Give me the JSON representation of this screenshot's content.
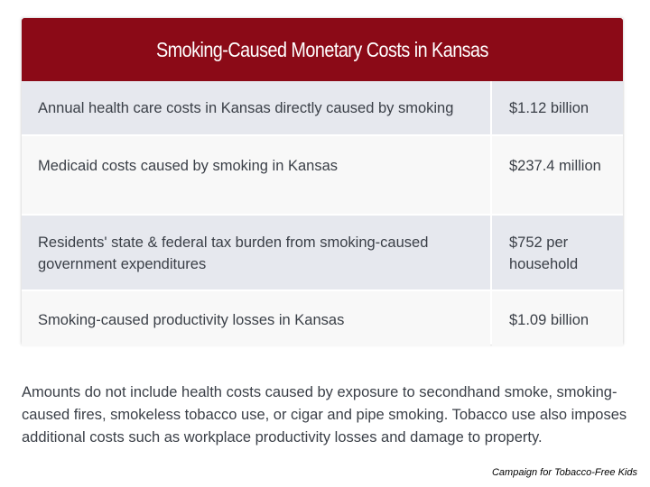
{
  "title": "Smoking-Caused Monetary Costs in Kansas",
  "rows": [
    {
      "description": "Annual health care costs in Kansas directly caused by smoking",
      "value": "$1.12 billion"
    },
    {
      "description": "Medicaid costs caused by smoking in Kansas",
      "value": "$237.4 million"
    },
    {
      "description": "Residents' state & federal tax burden from smoking-caused government expenditures",
      "value": "$752 per household"
    },
    {
      "description": "Smoking-caused productivity losses in Kansas",
      "value": "$1.09 billion"
    }
  ],
  "note": "Amounts do not include health costs caused by exposure to secondhand smoke, smoking-caused fires, smokeless tobacco use, or cigar and pipe smoking. Tobacco use also imposes additional costs such as workplace productivity losses and damage to property.",
  "credit": "Campaign for Tobacco-Free Kids",
  "colors": {
    "header_bg": "#8b0a17",
    "row_shaded": "#e6e8ee",
    "row_plain": "#f8f8f8",
    "text": "#3a3f47"
  }
}
